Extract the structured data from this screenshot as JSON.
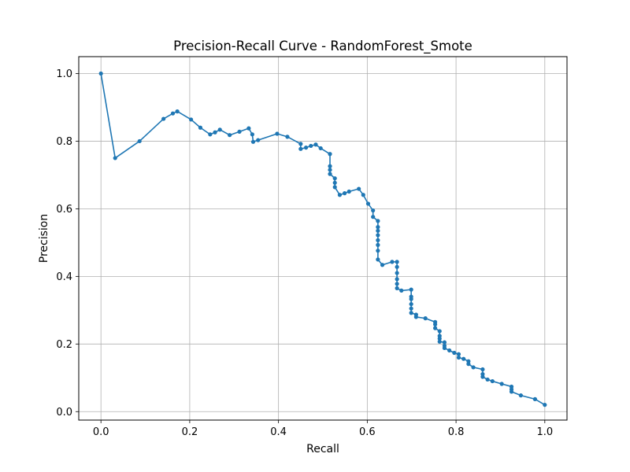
{
  "chart_data": {
    "type": "line",
    "title": "Precision-Recall Curve - RandomForest_Smote",
    "xlabel": "Recall",
    "ylabel": "Precision",
    "xlim": [
      -0.05,
      1.05
    ],
    "ylim": [
      -0.025,
      1.05
    ],
    "xticks": [
      0.0,
      0.2,
      0.4,
      0.6,
      0.8,
      1.0
    ],
    "xtick_labels": [
      "0.0",
      "0.2",
      "0.4",
      "0.6",
      "0.8",
      "1.0"
    ],
    "yticks": [
      0.0,
      0.2,
      0.4,
      0.6,
      0.8,
      1.0
    ],
    "ytick_labels": [
      "0.0",
      "0.2",
      "0.4",
      "0.6",
      "0.8",
      "1.0"
    ],
    "grid": true,
    "legend": "none",
    "series": [
      {
        "color": "#1f77b4",
        "marker": "circle",
        "points": [
          [
            0.0,
            1.0
          ],
          [
            0.032,
            0.75
          ],
          [
            0.087,
            0.8
          ],
          [
            0.141,
            0.866
          ],
          [
            0.162,
            0.882
          ],
          [
            0.172,
            0.888
          ],
          [
            0.203,
            0.864
          ],
          [
            0.224,
            0.84
          ],
          [
            0.246,
            0.82
          ],
          [
            0.257,
            0.826
          ],
          [
            0.268,
            0.834
          ],
          [
            0.29,
            0.818
          ],
          [
            0.312,
            0.828
          ],
          [
            0.333,
            0.838
          ],
          [
            0.341,
            0.82
          ],
          [
            0.343,
            0.798
          ],
          [
            0.354,
            0.803
          ],
          [
            0.397,
            0.822
          ],
          [
            0.42,
            0.813
          ],
          [
            0.45,
            0.792
          ],
          [
            0.45,
            0.777
          ],
          [
            0.462,
            0.781
          ],
          [
            0.473,
            0.786
          ],
          [
            0.484,
            0.79
          ],
          [
            0.495,
            0.779
          ],
          [
            0.516,
            0.762
          ],
          [
            0.516,
            0.726
          ],
          [
            0.516,
            0.715
          ],
          [
            0.516,
            0.703
          ],
          [
            0.527,
            0.69
          ],
          [
            0.527,
            0.677
          ],
          [
            0.527,
            0.664
          ],
          [
            0.538,
            0.641
          ],
          [
            0.549,
            0.646
          ],
          [
            0.559,
            0.651
          ],
          [
            0.581,
            0.659
          ],
          [
            0.591,
            0.641
          ],
          [
            0.602,
            0.615
          ],
          [
            0.613,
            0.595
          ],
          [
            0.613,
            0.576
          ],
          [
            0.624,
            0.564
          ],
          [
            0.624,
            0.546
          ],
          [
            0.624,
            0.535
          ],
          [
            0.624,
            0.522
          ],
          [
            0.624,
            0.507
          ],
          [
            0.624,
            0.493
          ],
          [
            0.624,
            0.476
          ],
          [
            0.624,
            0.45
          ],
          [
            0.634,
            0.434
          ],
          [
            0.656,
            0.443
          ],
          [
            0.667,
            0.443
          ],
          [
            0.667,
            0.428
          ],
          [
            0.667,
            0.41
          ],
          [
            0.667,
            0.392
          ],
          [
            0.667,
            0.378
          ],
          [
            0.667,
            0.365
          ],
          [
            0.677,
            0.358
          ],
          [
            0.699,
            0.361
          ],
          [
            0.699,
            0.34
          ],
          [
            0.699,
            0.333
          ],
          [
            0.699,
            0.318
          ],
          [
            0.699,
            0.305
          ],
          [
            0.699,
            0.292
          ],
          [
            0.71,
            0.287
          ],
          [
            0.71,
            0.28
          ],
          [
            0.731,
            0.276
          ],
          [
            0.753,
            0.265
          ],
          [
            0.753,
            0.258
          ],
          [
            0.753,
            0.247
          ],
          [
            0.763,
            0.238
          ],
          [
            0.763,
            0.224
          ],
          [
            0.763,
            0.216
          ],
          [
            0.763,
            0.207
          ],
          [
            0.774,
            0.205
          ],
          [
            0.774,
            0.195
          ],
          [
            0.774,
            0.188
          ],
          [
            0.785,
            0.181
          ],
          [
            0.796,
            0.174
          ],
          [
            0.806,
            0.17
          ],
          [
            0.806,
            0.16
          ],
          [
            0.817,
            0.156
          ],
          [
            0.828,
            0.149
          ],
          [
            0.828,
            0.141
          ],
          [
            0.839,
            0.131
          ],
          [
            0.86,
            0.125
          ],
          [
            0.86,
            0.111
          ],
          [
            0.86,
            0.103
          ],
          [
            0.871,
            0.095
          ],
          [
            0.882,
            0.09
          ],
          [
            0.903,
            0.082
          ],
          [
            0.925,
            0.074
          ],
          [
            0.925,
            0.066
          ],
          [
            0.925,
            0.059
          ],
          [
            0.946,
            0.048
          ],
          [
            0.978,
            0.037
          ],
          [
            1.0,
            0.02
          ]
        ]
      }
    ]
  }
}
